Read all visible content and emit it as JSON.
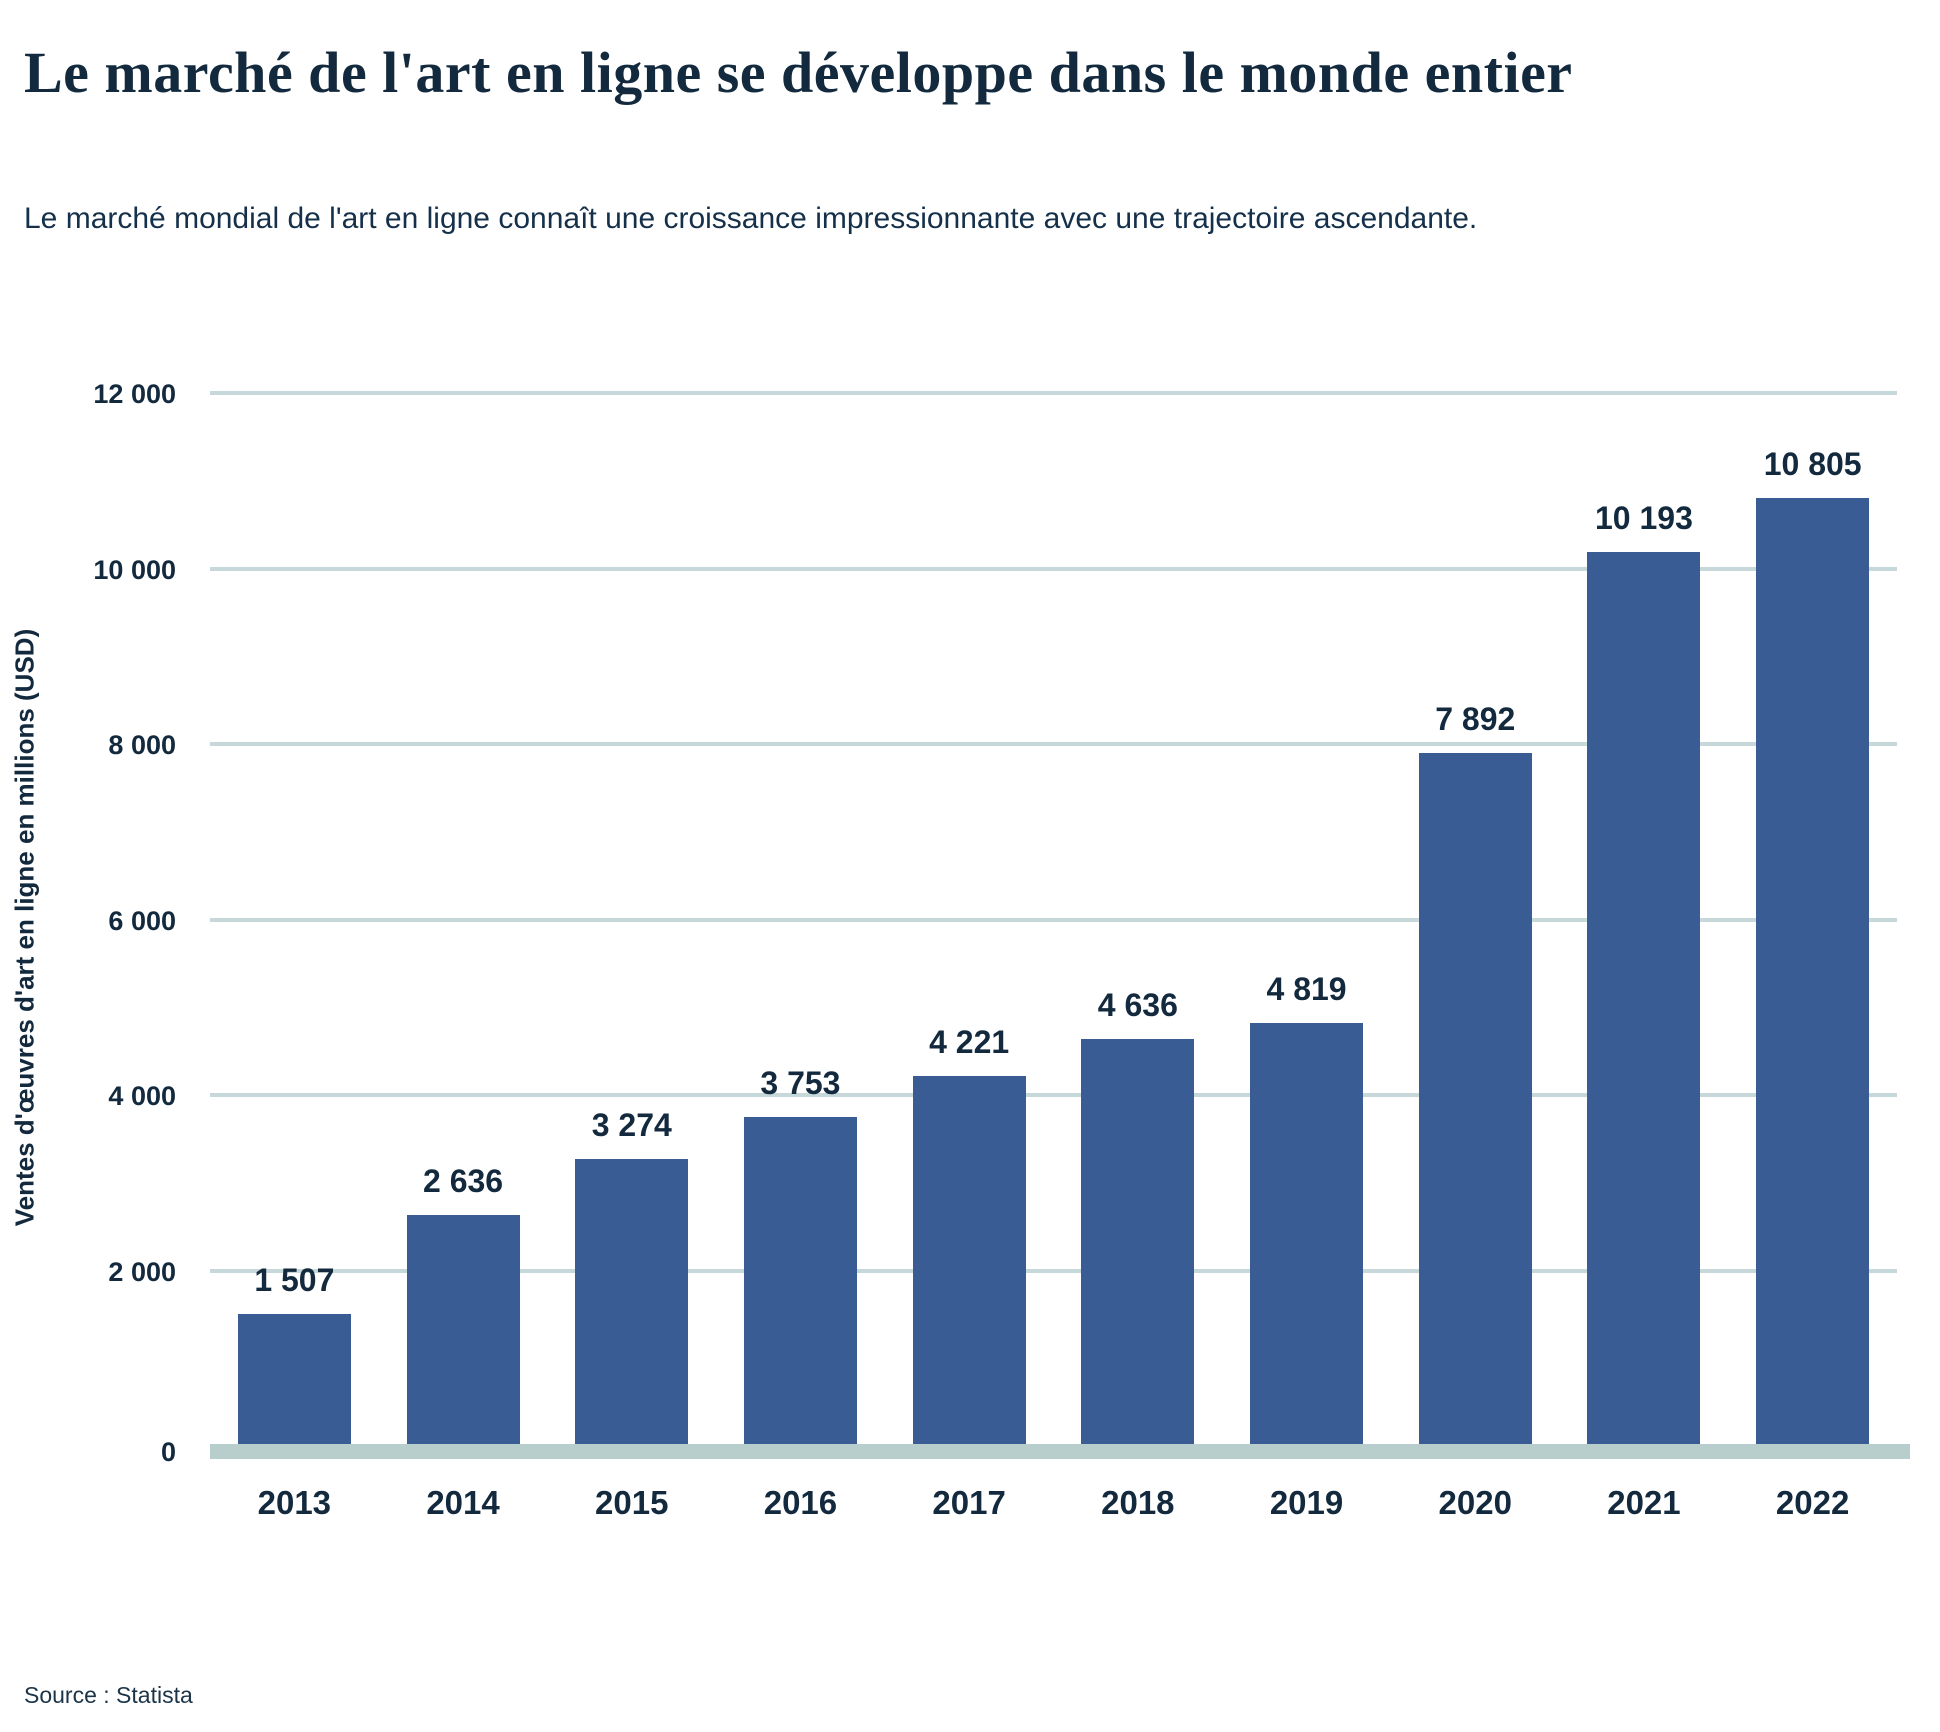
{
  "header": {
    "title": "Le marché de l'art en ligne se développe dans le monde entier",
    "subtitle": "Le marché mondial de l'art en ligne connaît une croissance impressionnante avec une trajectoire ascendante."
  },
  "source": "Source : Statista",
  "chart_data": {
    "type": "bar",
    "title": "Le marché de l'art en ligne se développe dans le monde entier",
    "subtitle": "Le marché mondial de l'art en ligne connaît une croissance impressionnante avec une trajectoire ascendante.",
    "categories": [
      "2013",
      "2014",
      "2015",
      "2016",
      "2017",
      "2018",
      "2019",
      "2020",
      "2021",
      "2022"
    ],
    "values": [
      1507,
      2636,
      3274,
      3753,
      4221,
      4636,
      4819,
      7892,
      10193,
      10805
    ],
    "value_labels": [
      "1 507",
      "2 636",
      "3 274",
      "3 753",
      "4 221",
      "4 636",
      "4 819",
      "7 892",
      "10 193",
      "10 805"
    ],
    "xlabel": "",
    "ylabel": "Ventes d'œuvres d'art en ligne en millions (USD)",
    "ylim": [
      0,
      12000
    ],
    "yticks": [
      {
        "value": 0,
        "label": "0"
      },
      {
        "value": 2000,
        "label": "2 000"
      },
      {
        "value": 4000,
        "label": "4 000"
      },
      {
        "value": 6000,
        "label": "6 000"
      },
      {
        "value": 8000,
        "label": "8 000"
      },
      {
        "value": 10000,
        "label": "10 000"
      },
      {
        "value": 12000,
        "label": "12 000"
      }
    ],
    "grid": "horizontal",
    "legend": "none",
    "bar_color": "#3a5c94",
    "gridline_color": "#c6d8da",
    "baseline_color": "#b7cecd",
    "text_color": "#13293d"
  }
}
